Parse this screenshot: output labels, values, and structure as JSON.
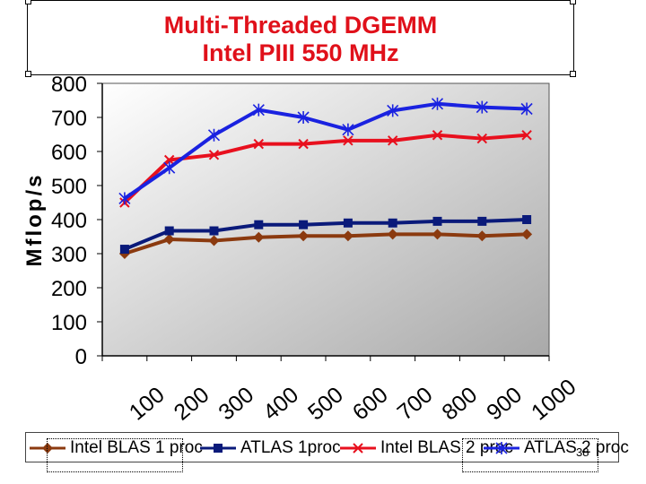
{
  "slide": {
    "title_line1": "Multi-Threaded DGEMM",
    "title_line2": "Intel PIII 550 MHz",
    "page_number": "38"
  },
  "chart_data": {
    "type": "line",
    "title": "Multi-Threaded DGEMM Intel PIII 550 MHz",
    "xlabel": "",
    "ylabel": "Mflop/s",
    "categories": [
      "100",
      "200",
      "300",
      "400",
      "500",
      "600",
      "700",
      "800",
      "900",
      "1000"
    ],
    "ylim": [
      0,
      800
    ],
    "yticks": [
      "0",
      "100",
      "200",
      "300",
      "400",
      "500",
      "600",
      "700",
      "800"
    ],
    "grid": false,
    "legend_position": "bottom",
    "series": [
      {
        "name": "Intel BLAS 1 proc",
        "color": "#8b3a0f",
        "marker": "diamond",
        "values": [
          300,
          342,
          338,
          348,
          352,
          352,
          357,
          357,
          352,
          357
        ]
      },
      {
        "name": "ATLAS 1proc",
        "color": "#0a1a7a",
        "marker": "square",
        "values": [
          313,
          367,
          367,
          385,
          385,
          390,
          390,
          395,
          395,
          400
        ]
      },
      {
        "name": "Intel BLAS 2 proc",
        "color": "#e8101e",
        "marker": "x",
        "values": [
          450,
          575,
          590,
          622,
          622,
          632,
          632,
          648,
          638,
          648
        ]
      },
      {
        "name": "ATLAS 2 proc",
        "color": "#1a22e0",
        "marker": "star",
        "values": [
          462,
          552,
          648,
          722,
          700,
          664,
          720,
          740,
          730,
          725
        ]
      }
    ]
  }
}
